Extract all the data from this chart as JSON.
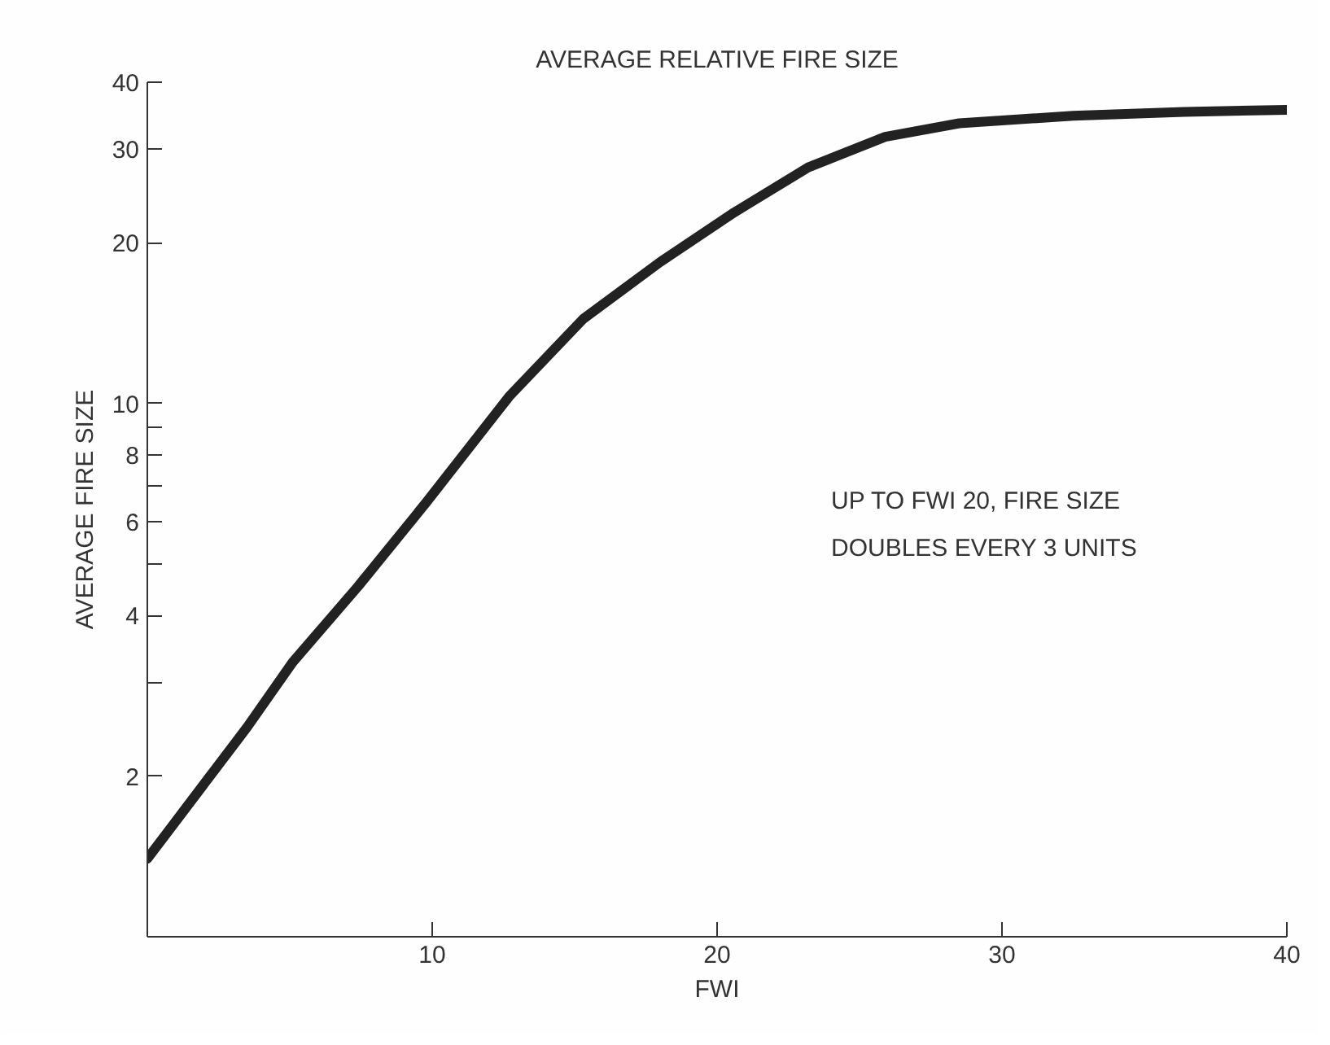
{
  "chart_data": {
    "type": "line",
    "title": "AVERAGE RELATIVE FIRE SIZE",
    "xlabel": "FWI",
    "ylabel": "AVERAGE FIRE SIZE",
    "annotations": [
      "UP TO FWI 20, FIRE SIZE\nDOUBLES EVERY 3 UNITS"
    ],
    "x": [
      0,
      3.5,
      5.1,
      7.4,
      9.8,
      12.7,
      15.3,
      18.0,
      20.6,
      23.2,
      25.9,
      28.5,
      32.5,
      36.4,
      40
    ],
    "series": [
      {
        "color": "#222222",
        "values": [
          1.4,
          2.47,
          3.27,
          4.54,
          6.53,
          10.3,
          14.4,
          18.4,
          22.8,
          27.7,
          31.6,
          33.5,
          34.6,
          35.2,
          35.5
        ]
      }
    ],
    "log": "y",
    "xlim": [
      0,
      40
    ],
    "ylim": [
      1,
      40
    ],
    "xticks": [
      {
        "value": 0,
        "label": null
      },
      10,
      20,
      30,
      40
    ],
    "yticks": [
      2,
      {
        "value": 3,
        "label": null
      },
      4,
      {
        "value": 5,
        "label": null
      },
      6,
      {
        "value": 7,
        "label": null
      },
      8,
      {
        "value": 9,
        "label": null
      },
      10,
      20,
      30,
      40
    ],
    "grid": false,
    "marker": "none",
    "line_style": "solid"
  }
}
